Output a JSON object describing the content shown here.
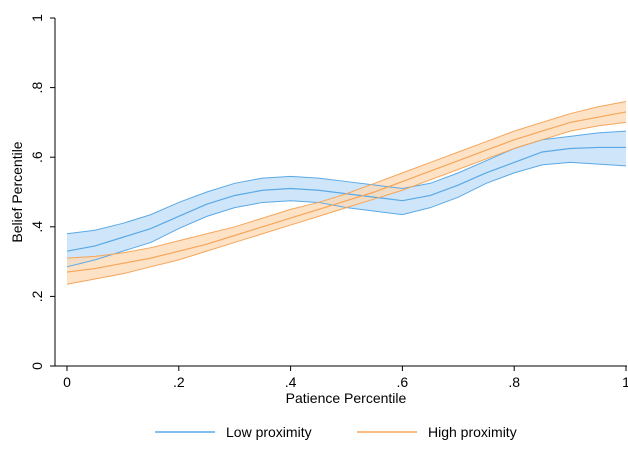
{
  "chart_data": {
    "type": "line",
    "xlabel": "Patience Percentile",
    "ylabel": "Belief Percentile",
    "xlim": [
      0,
      1
    ],
    "ylim": [
      0,
      1
    ],
    "xticks": [
      0,
      0.2,
      0.4,
      0.6,
      0.8,
      1
    ],
    "xtick_labels": [
      "0",
      ".2",
      ".4",
      ".6",
      ".8",
      "1"
    ],
    "yticks": [
      0,
      0.2,
      0.4,
      0.6,
      0.8,
      1
    ],
    "ytick_labels": [
      "0",
      ".2",
      ".4",
      ".6",
      ".8",
      "1"
    ],
    "grid": false,
    "legend_position": "bottom",
    "series": [
      {
        "name": "Low proximity",
        "color": "#5aa9e6",
        "band_fill": "#bfdcf7",
        "x": [
          0,
          0.05,
          0.1,
          0.15,
          0.2,
          0.25,
          0.3,
          0.35,
          0.4,
          0.45,
          0.5,
          0.55,
          0.6,
          0.65,
          0.7,
          0.75,
          0.8,
          0.85,
          0.9,
          0.95,
          1
        ],
        "y": [
          0.33,
          0.345,
          0.37,
          0.395,
          0.43,
          0.465,
          0.49,
          0.505,
          0.51,
          0.505,
          0.495,
          0.485,
          0.475,
          0.49,
          0.52,
          0.555,
          0.585,
          0.615,
          0.625,
          0.628,
          0.628
        ],
        "lower": [
          0.285,
          0.305,
          0.33,
          0.355,
          0.395,
          0.43,
          0.455,
          0.47,
          0.475,
          0.47,
          0.455,
          0.445,
          0.435,
          0.455,
          0.485,
          0.525,
          0.555,
          0.578,
          0.585,
          0.58,
          0.575
        ],
        "upper": [
          0.38,
          0.39,
          0.41,
          0.435,
          0.47,
          0.5,
          0.525,
          0.54,
          0.545,
          0.54,
          0.53,
          0.52,
          0.51,
          0.525,
          0.555,
          0.59,
          0.625,
          0.65,
          0.66,
          0.67,
          0.675
        ]
      },
      {
        "name": "High proximity",
        "color": "#f5a65b",
        "band_fill": "#fcd8b3",
        "x": [
          0,
          0.05,
          0.1,
          0.15,
          0.2,
          0.25,
          0.3,
          0.35,
          0.4,
          0.45,
          0.5,
          0.55,
          0.6,
          0.65,
          0.7,
          0.75,
          0.8,
          0.85,
          0.9,
          0.95,
          1
        ],
        "y": [
          0.27,
          0.28,
          0.295,
          0.31,
          0.33,
          0.35,
          0.375,
          0.4,
          0.425,
          0.45,
          0.475,
          0.5,
          0.53,
          0.56,
          0.59,
          0.62,
          0.65,
          0.675,
          0.7,
          0.715,
          0.73
        ],
        "lower": [
          0.235,
          0.25,
          0.265,
          0.285,
          0.305,
          0.33,
          0.355,
          0.38,
          0.405,
          0.43,
          0.455,
          0.48,
          0.505,
          0.535,
          0.565,
          0.595,
          0.625,
          0.65,
          0.675,
          0.69,
          0.7
        ],
        "upper": [
          0.31,
          0.315,
          0.325,
          0.34,
          0.36,
          0.38,
          0.4,
          0.425,
          0.45,
          0.47,
          0.495,
          0.525,
          0.555,
          0.585,
          0.615,
          0.645,
          0.675,
          0.7,
          0.725,
          0.745,
          0.76
        ]
      }
    ]
  }
}
